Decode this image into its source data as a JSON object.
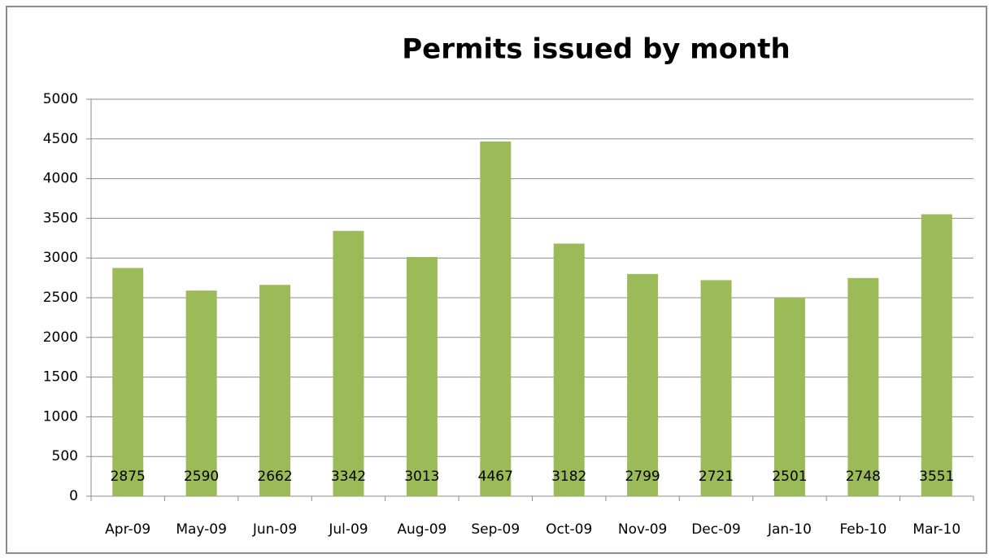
{
  "chart_data": {
    "type": "bar",
    "title": "Permits issued by month",
    "categories": [
      "Apr-09",
      "May-09",
      "Jun-09",
      "Jul-09",
      "Aug-09",
      "Sep-09",
      "Oct-09",
      "Nov-09",
      "Dec-09",
      "Jan-10",
      "Feb-10",
      "Mar-10"
    ],
    "values": [
      2875,
      2590,
      2662,
      3342,
      3013,
      4467,
      3182,
      2799,
      2721,
      2501,
      2748,
      3551
    ],
    "color": "#9bbb59",
    "ylim": [
      0,
      5000
    ],
    "yticks": [
      0,
      500,
      1000,
      1500,
      2000,
      2500,
      3000,
      3500,
      4000,
      4500,
      5000
    ],
    "grid": true,
    "data_labels": true
  }
}
